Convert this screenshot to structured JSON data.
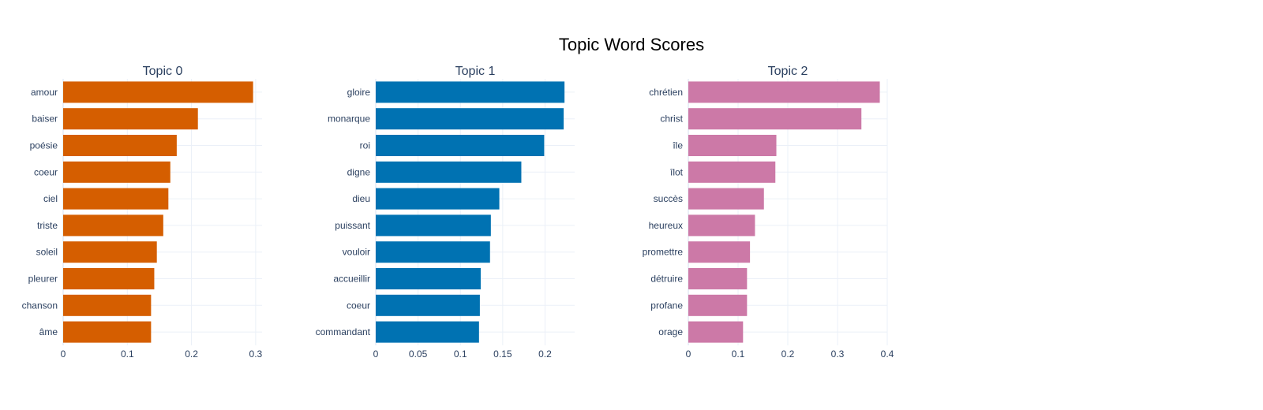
{
  "chart_data": {
    "title": "Topic Word Scores",
    "type": "bar",
    "orientation": "horizontal",
    "grid": true,
    "legend": "none",
    "panels": [
      {
        "title": "Topic 0",
        "color": "#D55E00",
        "categories": [
          "amour",
          "baiser",
          "poésie",
          "coeur",
          "ciel",
          "triste",
          "soleil",
          "pleurer",
          "chanson",
          "âme"
        ],
        "values": [
          0.296,
          0.21,
          0.177,
          0.167,
          0.164,
          0.156,
          0.146,
          0.142,
          0.137,
          0.137
        ],
        "xlim": [
          0,
          0.31
        ],
        "xticks": [
          0,
          0.1,
          0.2,
          0.3
        ],
        "xtick_labels": [
          "0",
          "0.1",
          "0.2",
          "0.3"
        ]
      },
      {
        "title": "Topic 1",
        "color": "#0072B2",
        "categories": [
          "gloire",
          "monarque",
          "roi",
          "digne",
          "dieu",
          "puissant",
          "vouloir",
          "accueillir",
          "coeur",
          "commandant"
        ],
        "values": [
          0.223,
          0.222,
          0.199,
          0.172,
          0.146,
          0.136,
          0.135,
          0.124,
          0.123,
          0.122
        ],
        "xlim": [
          0,
          0.235
        ],
        "xticks": [
          0,
          0.05,
          0.1,
          0.15,
          0.2
        ],
        "xtick_labels": [
          "0",
          "0.05",
          "0.1",
          "0.15",
          "0.2"
        ]
      },
      {
        "title": "Topic 2",
        "color": "#CC79A7",
        "categories": [
          "chrétien",
          "christ",
          "île",
          "îlot",
          "succès",
          "heureux",
          "promettre",
          "détruire",
          "profane",
          "orage"
        ],
        "values": [
          0.385,
          0.348,
          0.177,
          0.175,
          0.152,
          0.134,
          0.124,
          0.118,
          0.118,
          0.11
        ],
        "xlim": [
          0,
          0.4
        ],
        "xticks": [
          0,
          0.1,
          0.2,
          0.3,
          0.4
        ],
        "xtick_labels": [
          "0",
          "0.1",
          "0.2",
          "0.3",
          "0.4"
        ]
      }
    ]
  }
}
